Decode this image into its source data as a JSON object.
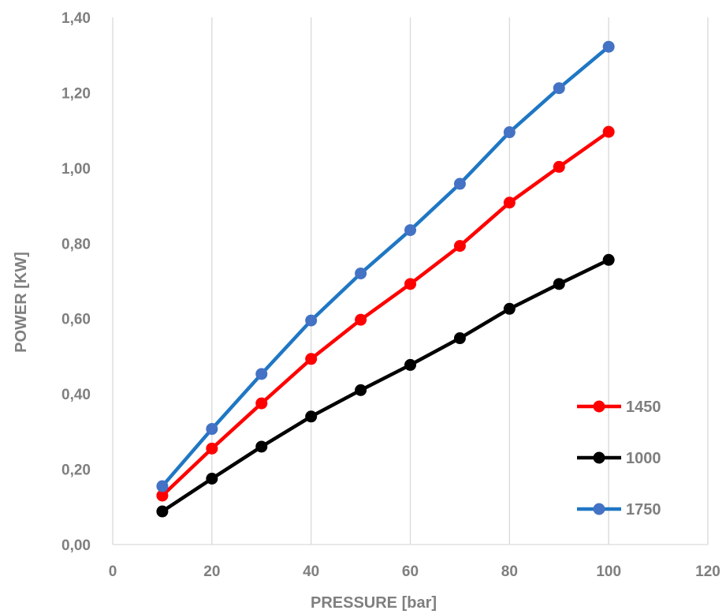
{
  "chart_data": {
    "type": "line",
    "title": "",
    "xlabel": "PRESSURE [bar]",
    "ylabel": "POWER [KW]",
    "xlim": [
      0,
      120
    ],
    "ylim": [
      0,
      1.4
    ],
    "x_ticks": [
      0,
      20,
      40,
      60,
      80,
      100,
      120
    ],
    "y_ticks": [
      0,
      0.2,
      0.4,
      0.6,
      0.8,
      1.0,
      1.2,
      1.4
    ],
    "x_tick_labels": [
      "0",
      "20",
      "40",
      "60",
      "80",
      "100",
      "120"
    ],
    "y_tick_labels": [
      "0,00",
      "0,20",
      "0,40",
      "0,60",
      "0,80",
      "1,00",
      "1,20",
      "1,40"
    ],
    "grid": "vertical",
    "legend_position": "right",
    "x": [
      10,
      20,
      30,
      40,
      50,
      60,
      70,
      80,
      90,
      100
    ],
    "series": [
      {
        "name": "1450",
        "color": "#ff0000",
        "values": [
          0.13,
          0.255,
          0.375,
          0.493,
          0.597,
          0.692,
          0.793,
          0.908,
          1.003,
          1.096
        ]
      },
      {
        "name": "1000",
        "color": "#000000",
        "values": [
          0.088,
          0.175,
          0.26,
          0.34,
          0.41,
          0.477,
          0.548,
          0.626,
          0.692,
          0.756
        ]
      },
      {
        "name": "1750",
        "color": "#4472c4",
        "line_color": "#1f77c4",
        "values": [
          0.155,
          0.307,
          0.453,
          0.595,
          0.72,
          0.835,
          0.958,
          1.095,
          1.212,
          1.322
        ]
      }
    ]
  }
}
